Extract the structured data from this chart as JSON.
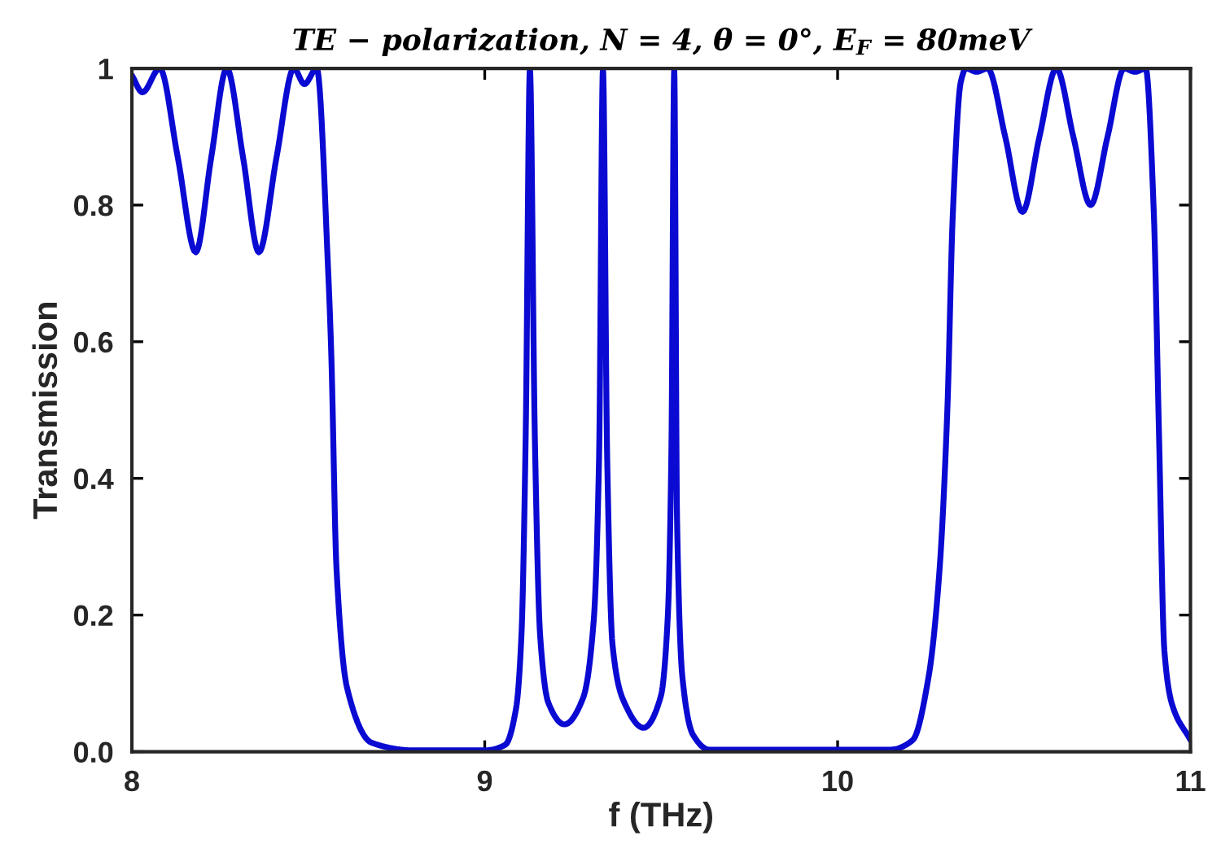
{
  "chart_data": {
    "type": "line",
    "title": "TE − polarization, N = 4, θ = 0°, E$_{F}$ = 80meV",
    "xlabel": "f (THz)",
    "ylabel": "Transmission",
    "x": [
      8.0,
      8.03,
      8.079,
      8.13,
      8.181,
      8.225,
      8.269,
      8.315,
      8.36,
      8.41,
      8.459,
      8.489,
      8.524,
      8.557,
      8.565,
      8.58,
      8.61,
      8.68,
      8.8,
      9.0,
      9.058,
      9.089,
      9.104,
      9.116,
      9.128,
      9.142,
      9.157,
      9.18,
      9.226,
      9.279,
      9.309,
      9.324,
      9.335,
      9.347,
      9.362,
      9.393,
      9.45,
      9.499,
      9.519,
      9.529,
      9.537,
      9.545,
      9.56,
      9.59,
      9.636,
      10.15,
      10.213,
      10.258,
      10.288,
      10.311,
      10.326,
      10.349,
      10.364,
      10.394,
      10.425,
      10.475,
      10.524,
      10.572,
      10.62,
      10.668,
      10.717,
      10.765,
      10.812,
      10.843,
      10.873,
      10.896,
      10.911,
      10.926,
      10.948,
      11.0
    ],
    "series": [
      {
        "color": "#0a0ad2",
        "values": [
          0.99,
          0.965,
          1.0,
          0.87,
          0.731,
          0.87,
          1.0,
          0.87,
          0.731,
          0.87,
          1.0,
          0.977,
          1.0,
          0.695,
          0.584,
          0.267,
          0.093,
          0.013,
          0.002,
          0.002,
          0.01,
          0.064,
          0.17,
          0.46,
          1.0,
          0.46,
          0.17,
          0.072,
          0.04,
          0.079,
          0.193,
          0.43,
          1.0,
          0.43,
          0.157,
          0.075,
          0.035,
          0.081,
          0.2,
          0.44,
          1.0,
          0.34,
          0.11,
          0.025,
          0.003,
          0.003,
          0.017,
          0.11,
          0.26,
          0.5,
          0.78,
          0.98,
          1.0,
          0.995,
          1.0,
          0.9,
          0.79,
          0.9,
          1.0,
          0.9,
          0.8,
          0.9,
          1.0,
          0.995,
          1.0,
          0.79,
          0.46,
          0.148,
          0.069,
          0.017
        ]
      }
    ],
    "xlim": [
      8,
      11
    ],
    "ylim": [
      0,
      1
    ],
    "xticks": [
      8,
      9,
      10,
      11
    ],
    "yticks": [
      {
        "value": 0,
        "label": "0.0"
      },
      0.2,
      0.4,
      0.6,
      0.8,
      1
    ],
    "grid": false,
    "marker": "none",
    "line_style": "solid"
  }
}
